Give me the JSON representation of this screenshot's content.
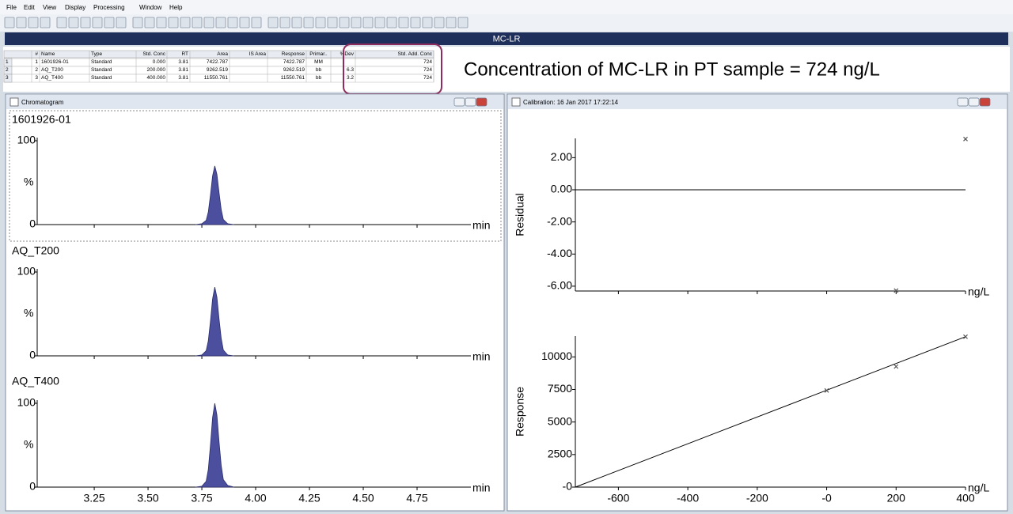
{
  "menu": [
    "File",
    "Edit",
    "View",
    "Display",
    "Processing",
    "Window",
    "Help"
  ],
  "banner": "MC-LR",
  "table": {
    "columns": [
      "#",
      "Name",
      "Type",
      "Std. Conc",
      "RT",
      "Area",
      "IS Area",
      "Response",
      "Primar..",
      "%Dev",
      "Std. Add. Conc"
    ],
    "row_labels": [
      "1",
      "2",
      "3"
    ],
    "rows": [
      [
        "1",
        "1601926-01",
        "Standard",
        "0.000",
        "3.81",
        "7422.787",
        null,
        "7422.787",
        "MM",
        null,
        "724"
      ],
      [
        "2",
        "AQ_T200",
        "Standard",
        "200.000",
        "3.81",
        "9262.519",
        null,
        "9262.519",
        "bb",
        "6.3",
        "724"
      ],
      [
        "3",
        "AQ_T400",
        "Standard",
        "400.000",
        "3.81",
        "11550.761",
        null,
        "11550.761",
        "bb",
        "3.2",
        "724"
      ]
    ]
  },
  "annotation": "Concentration of MC-LR in PT sample = 724 ng/L",
  "chromatogram": {
    "title": "Chromatogram",
    "x_unit": "min",
    "y_label": "%",
    "xlim": [
      2.985,
      5.0
    ],
    "xticks": [
      3.25,
      {
        "value": 3.5,
        "label": "3.50"
      },
      3.75,
      {
        "value": 4,
        "label": "4.00"
      },
      4.25,
      {
        "value": 4.5,
        "label": "4.50"
      },
      4.75
    ],
    "ylim": [
      0,
      100
    ],
    "yticks": [
      0,
      100
    ],
    "color": "#4b4f9e",
    "panels": [
      {
        "name": "1601926-01",
        "x": [
          3.72,
          3.75,
          3.77,
          3.78,
          3.79,
          3.8,
          3.81,
          3.82,
          3.83,
          3.84,
          3.85,
          3.87,
          3.9
        ],
        "values": [
          0,
          1,
          5,
          15,
          35,
          58,
          70,
          60,
          38,
          18,
          6,
          1,
          0
        ]
      },
      {
        "name": "AQ_T200",
        "x": [
          3.72,
          3.75,
          3.77,
          3.78,
          3.79,
          3.8,
          3.81,
          3.82,
          3.83,
          3.84,
          3.85,
          3.87,
          3.9
        ],
        "values": [
          0,
          1,
          6,
          18,
          41,
          68,
          82,
          70,
          44,
          21,
          7,
          1,
          0
        ]
      },
      {
        "name": "AQ_T400",
        "x": [
          3.72,
          3.75,
          3.77,
          3.78,
          3.79,
          3.8,
          3.81,
          3.82,
          3.83,
          3.84,
          3.85,
          3.87,
          3.9
        ],
        "values": [
          0,
          1,
          7,
          21,
          50,
          83,
          100,
          86,
          54,
          26,
          9,
          2,
          0
        ]
      }
    ]
  },
  "calibration": {
    "title": "Calibration: 16 Jan 2017 17:22:14",
    "x_unit": "ng/L",
    "xlim": [
      -724,
      400
    ],
    "xticks": [
      -600,
      -400,
      -200,
      {
        "value": 0,
        "label": "-0"
      },
      200,
      400
    ],
    "residual": {
      "y_label": "Residual",
      "ylim": [
        -6.3,
        3.2
      ],
      "yticks": [
        {
          "value": 2,
          "label": "2.00"
        },
        {
          "value": 0,
          "label": "0.00"
        },
        {
          "value": -2,
          "label": "-2.00"
        },
        {
          "value": -4,
          "label": "-4.00"
        },
        {
          "value": -6,
          "label": "-6.00"
        }
      ],
      "x": [
        200,
        400
      ],
      "values": [
        -6.27,
        3.16
      ]
    },
    "response": {
      "y_label": "Response",
      "ylim": [
        0,
        11600
      ],
      "yticks": [
        {
          "value": 0,
          "label": "-0"
        },
        2500,
        5000,
        7500,
        10000
      ],
      "x": [
        0,
        200,
        400
      ],
      "values": [
        7422.787,
        9262.519,
        11550.761
      ],
      "fit": {
        "x": [
          -724,
          400
        ],
        "values": [
          0,
          11550.761
        ]
      }
    }
  }
}
